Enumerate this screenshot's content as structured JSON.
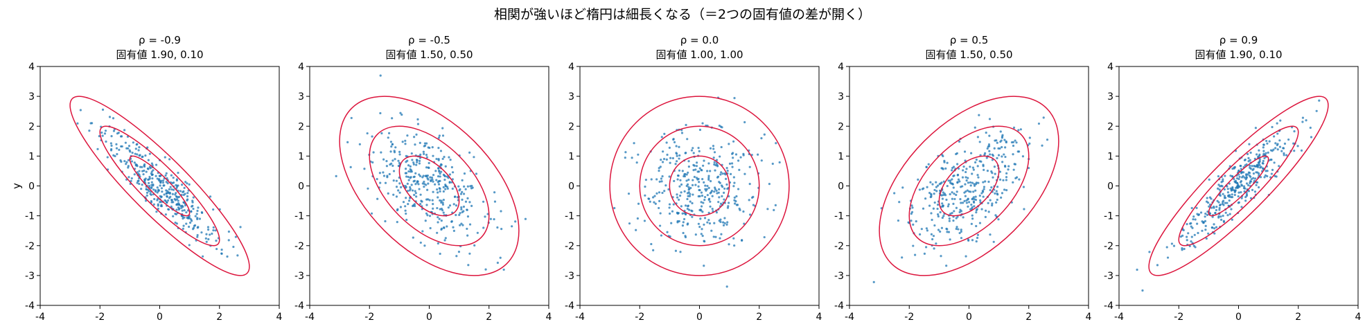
{
  "figure": {
    "suptitle": "相関が強いほど楕円は細長くなる（＝2つの固有値の差が開く）"
  },
  "chart_data": [
    {
      "type": "scatter",
      "title_line1": "ρ = -0.9",
      "title_line2": "固有値 1.90, 0.10",
      "rho": -0.9,
      "eigenvalues": [
        1.9,
        0.1
      ],
      "contour_levels_sigma": [
        1,
        2,
        3
      ],
      "xlim": [
        -4,
        4
      ],
      "ylim": [
        -4,
        4
      ],
      "ylabel": "y",
      "xticks": [
        "-4",
        "-2",
        "0",
        "2",
        "4"
      ],
      "yticks": [
        "4",
        "3",
        "2",
        "1",
        "0",
        "-1",
        "-2",
        "-3",
        "-4"
      ],
      "n_points": 400
    },
    {
      "type": "scatter",
      "title_line1": "ρ = -0.5",
      "title_line2": "固有値 1.50, 0.50",
      "rho": -0.5,
      "eigenvalues": [
        1.5,
        0.5
      ],
      "contour_levels_sigma": [
        1,
        2,
        3
      ],
      "xlim": [
        -4,
        4
      ],
      "ylim": [
        -4,
        4
      ],
      "ylabel": "",
      "xticks": [
        "-4",
        "-2",
        "0",
        "2",
        "4"
      ],
      "yticks": [
        "4",
        "3",
        "2",
        "1",
        "0",
        "-1",
        "-2",
        "-3",
        "-4"
      ],
      "n_points": 400
    },
    {
      "type": "scatter",
      "title_line1": "ρ = 0.0",
      "title_line2": "固有値 1.00, 1.00",
      "rho": 0.0,
      "eigenvalues": [
        1.0,
        1.0
      ],
      "contour_levels_sigma": [
        1,
        2,
        3
      ],
      "xlim": [
        -4,
        4
      ],
      "ylim": [
        -4,
        4
      ],
      "ylabel": "",
      "xticks": [
        "-4",
        "-2",
        "0",
        "2",
        "4"
      ],
      "yticks": [
        "4",
        "3",
        "2",
        "1",
        "0",
        "-1",
        "-2",
        "-3",
        "-4"
      ],
      "n_points": 400
    },
    {
      "type": "scatter",
      "title_line1": "ρ = 0.5",
      "title_line2": "固有値 1.50, 0.50",
      "rho": 0.5,
      "eigenvalues": [
        1.5,
        0.5
      ],
      "contour_levels_sigma": [
        1,
        2,
        3
      ],
      "xlim": [
        -4,
        4
      ],
      "ylim": [
        -4,
        4
      ],
      "ylabel": "",
      "xticks": [
        "-4",
        "-2",
        "0",
        "2",
        "4"
      ],
      "yticks": [
        "4",
        "3",
        "2",
        "1",
        "0",
        "-1",
        "-2",
        "-3",
        "-4"
      ],
      "n_points": 400
    },
    {
      "type": "scatter",
      "title_line1": "ρ = 0.9",
      "title_line2": "固有値 1.90, 0.10",
      "rho": 0.9,
      "eigenvalues": [
        1.9,
        0.1
      ],
      "contour_levels_sigma": [
        1,
        2,
        3
      ],
      "xlim": [
        -4,
        4
      ],
      "ylim": [
        -4,
        4
      ],
      "ylabel": "",
      "xticks": [
        "-4",
        "-2",
        "0",
        "2",
        "4"
      ],
      "yticks": [
        "4",
        "3",
        "2",
        "1",
        "0",
        "-1",
        "-2",
        "-3",
        "-4"
      ],
      "n_points": 400
    }
  ],
  "colors": {
    "points": "#1f77b4",
    "ellipse": "#dc143c",
    "axes": "#000000"
  }
}
